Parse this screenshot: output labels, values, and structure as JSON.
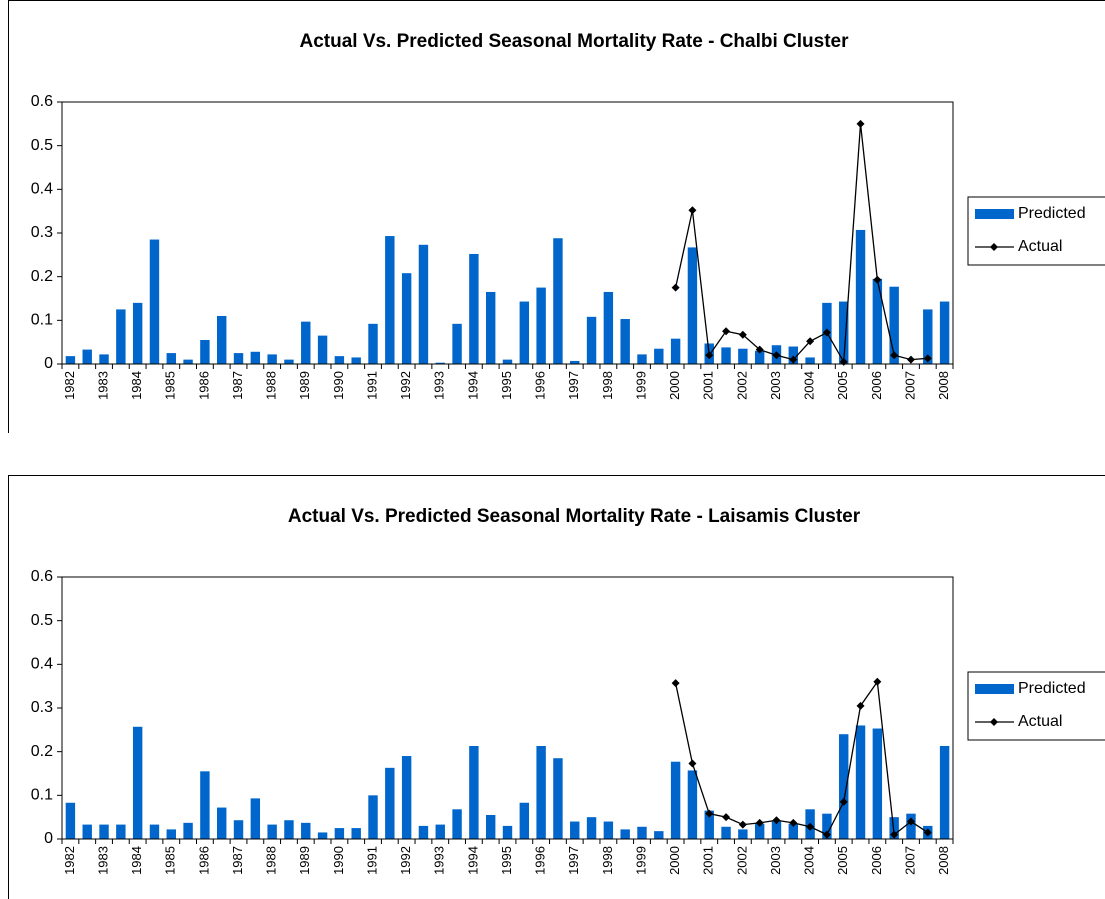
{
  "chart_data": [
    {
      "type": "bar-line",
      "title": "Actual Vs. Predicted Seasonal Mortality Rate - Chalbi Cluster",
      "categories": [
        "1982",
        null,
        "1983",
        null,
        "1984",
        null,
        "1985",
        null,
        "1986",
        null,
        "1987",
        null,
        "1988",
        null,
        "1989",
        null,
        "1990",
        null,
        "1991",
        null,
        "1992",
        null,
        "1993",
        null,
        "1994",
        null,
        "1995",
        null,
        "1996",
        null,
        "1997",
        null,
        "1998",
        null,
        "1999",
        null,
        "2000",
        null,
        "2001",
        null,
        "2002",
        null,
        "2003",
        null,
        "2004",
        null,
        "2005",
        null,
        "2006",
        null,
        "2007",
        null,
        "2008"
      ],
      "series": [
        {
          "name": "Predicted",
          "type": "bar",
          "color": "#0066cc",
          "values": [
            0.018,
            0.033,
            0.022,
            0.125,
            0.14,
            0.285,
            0.025,
            0.01,
            0.055,
            0.11,
            0.025,
            0.028,
            0.022,
            0.01,
            0.097,
            0.065,
            0.018,
            0.015,
            0.092,
            0.293,
            0.208,
            0.273,
            0.003,
            0.092,
            0.252,
            0.165,
            0.01,
            0.143,
            0.175,
            0.288,
            0.007,
            0.108,
            0.165,
            0.103,
            0.022,
            0.035,
            0.058,
            0.267,
            0.047,
            0.038,
            0.035,
            0.03,
            0.043,
            0.04,
            0.015,
            0.14,
            0.143,
            0.307,
            0.195,
            0.177,
            0,
            0.125,
            0.143
          ]
        },
        {
          "name": "Actual",
          "type": "line",
          "color": "#000000",
          "values": [
            null,
            null,
            null,
            null,
            null,
            null,
            null,
            null,
            null,
            null,
            null,
            null,
            null,
            null,
            null,
            null,
            null,
            null,
            null,
            null,
            null,
            null,
            null,
            null,
            null,
            null,
            null,
            null,
            null,
            null,
            null,
            null,
            null,
            null,
            null,
            null,
            0.175,
            0.352,
            0.02,
            0.075,
            0.067,
            0.033,
            0.02,
            0.01,
            0.052,
            0.072,
            0.005,
            0.55,
            0.193,
            0.02,
            0.01,
            0.013,
            null
          ]
        }
      ],
      "ylim": [
        0,
        0.6
      ],
      "yticks": [
        0,
        0.1,
        0.2,
        0.3,
        0.4,
        0.5,
        0.6
      ],
      "legend": "right"
    },
    {
      "type": "bar-line",
      "title": "Actual Vs. Predicted Seasonal Mortality Rate - Laisamis Cluster",
      "categories": [
        "1982",
        null,
        "1983",
        null,
        "1984",
        null,
        "1985",
        null,
        "1986",
        null,
        "1987",
        null,
        "1988",
        null,
        "1989",
        null,
        "1990",
        null,
        "1991",
        null,
        "1992",
        null,
        "1993",
        null,
        "1994",
        null,
        "1995",
        null,
        "1996",
        null,
        "1997",
        null,
        "1998",
        null,
        "1999",
        null,
        "2000",
        null,
        "2001",
        null,
        "2002",
        null,
        "2003",
        null,
        "2004",
        null,
        "2005",
        null,
        "2006",
        null,
        "2007",
        null,
        "2008"
      ],
      "series": [
        {
          "name": "Predicted",
          "type": "bar",
          "color": "#0066cc",
          "values": [
            0.083,
            0.033,
            0.033,
            0.033,
            0.257,
            0.033,
            0.022,
            0.037,
            0.155,
            0.072,
            0.043,
            0.093,
            0.033,
            0.043,
            0.037,
            0.015,
            0.025,
            0.025,
            0.1,
            0.163,
            0.19,
            0.03,
            0.033,
            0.068,
            0.213,
            0.055,
            0.03,
            0.083,
            0.213,
            0.185,
            0.04,
            0.05,
            0.04,
            0.022,
            0.028,
            0.018,
            0.177,
            0.157,
            0.065,
            0.028,
            0.022,
            0.035,
            0.04,
            0.035,
            0.068,
            0.058,
            0.24,
            0.26,
            0.253,
            0.05,
            0.058,
            0.03,
            0.213
          ]
        },
        {
          "name": "Actual",
          "type": "line",
          "color": "#000000",
          "values": [
            null,
            null,
            null,
            null,
            null,
            null,
            null,
            null,
            null,
            null,
            null,
            null,
            null,
            null,
            null,
            null,
            null,
            null,
            null,
            null,
            null,
            null,
            null,
            null,
            null,
            null,
            null,
            null,
            null,
            null,
            null,
            null,
            null,
            null,
            null,
            null,
            0.357,
            0.173,
            0.058,
            0.05,
            0.033,
            0.037,
            0.043,
            0.037,
            0.028,
            0.01,
            0.085,
            0.305,
            0.36,
            0.01,
            0.04,
            0.015,
            null
          ]
        }
      ],
      "ylim": [
        0,
        0.6
      ],
      "yticks": [
        0,
        0.1,
        0.2,
        0.3,
        0.4,
        0.5,
        0.6
      ],
      "legend": "right"
    }
  ]
}
